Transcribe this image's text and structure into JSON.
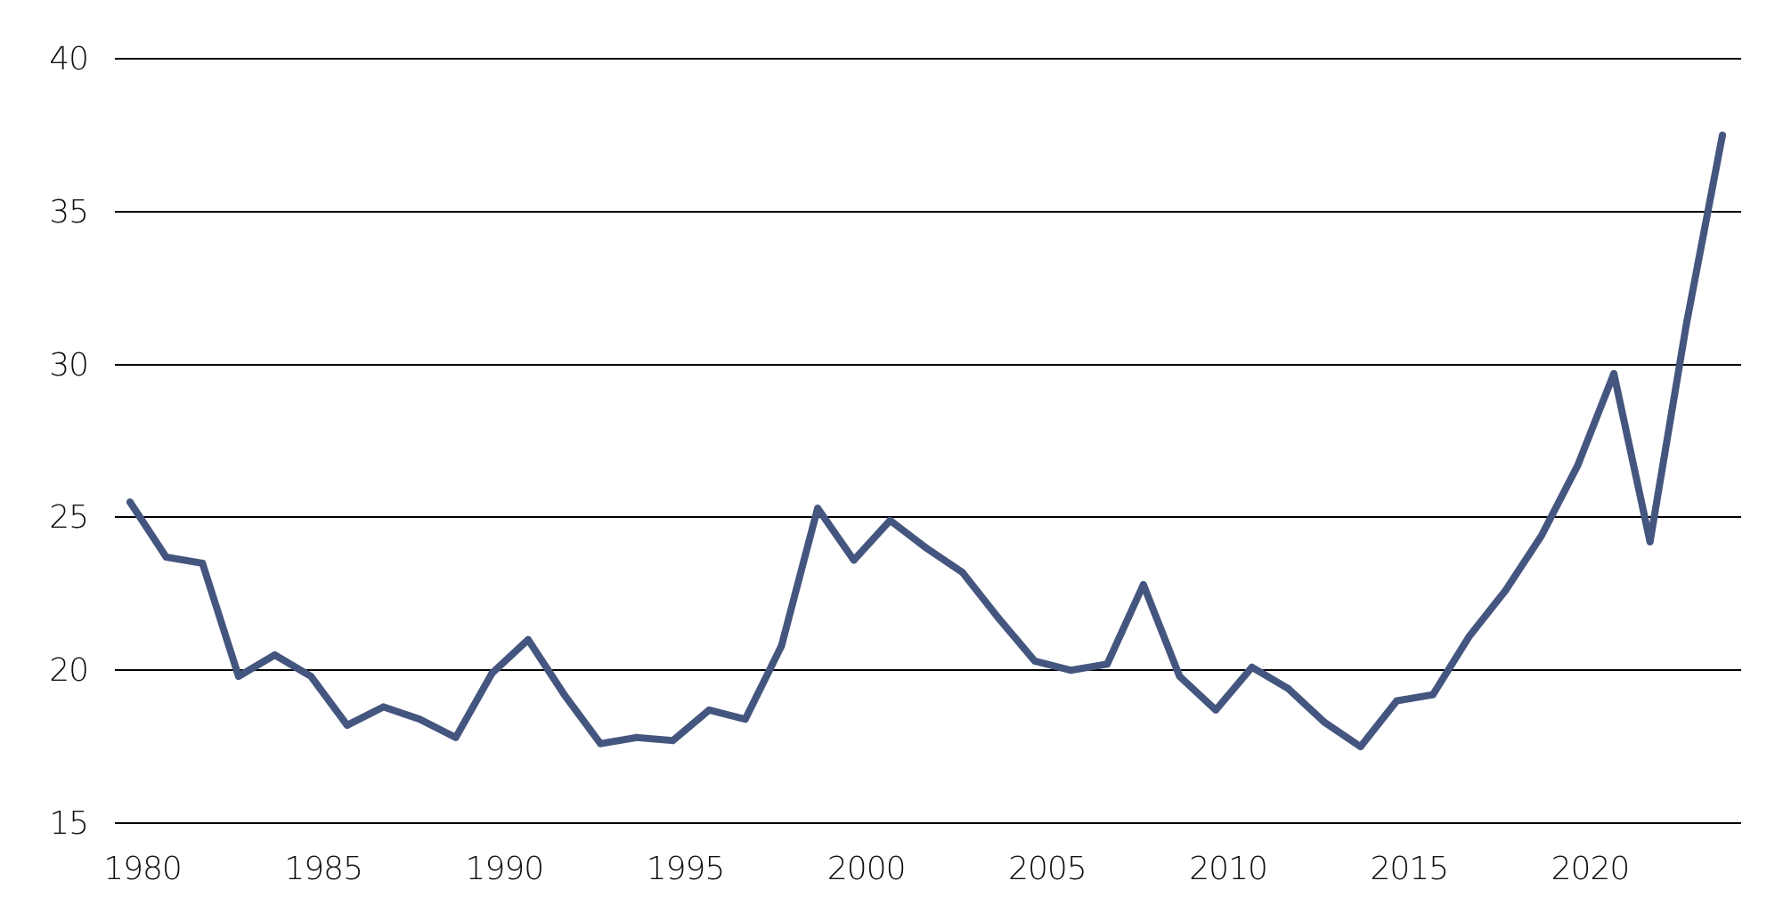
{
  "chart_data": {
    "type": "line",
    "title": "",
    "xlabel": "",
    "ylabel": "",
    "xlim": [
      1980,
      2024
    ],
    "ylim": [
      15,
      40
    ],
    "grid": true,
    "legend": "none",
    "y_ticks": [
      15,
      20,
      25,
      30,
      35,
      40
    ],
    "y_tick_labels": [
      "15",
      "20",
      "25",
      "30",
      "35",
      "40"
    ],
    "x_ticks": [
      1980,
      1985,
      1990,
      1995,
      2000,
      2005,
      2010,
      2015,
      2020
    ],
    "x_tick_labels": [
      "1980",
      "1985",
      "1990",
      "1995",
      "2000",
      "2005",
      "2010",
      "2015",
      "2020"
    ],
    "series_color": "#44567f",
    "grid_color": "#000000",
    "series": [
      {
        "x": [
          1980,
          1981,
          1982,
          1983,
          1984,
          1985,
          1986,
          1987,
          1988,
          1989,
          1990,
          1991,
          1992,
          1993,
          1994,
          1995,
          1996,
          1997,
          1998,
          1999,
          2000,
          2001,
          2002,
          2003,
          2004,
          2005,
          2006,
          2007,
          2008,
          2009,
          2010,
          2011,
          2012,
          2013,
          2014,
          2015,
          2016,
          2017,
          2018,
          2019,
          2020,
          2021,
          2022,
          2023,
          2024
        ],
        "values": [
          25.5,
          23.7,
          23.5,
          19.8,
          20.5,
          19.8,
          18.2,
          18.8,
          18.4,
          17.8,
          19.9,
          21.0,
          19.2,
          17.6,
          17.8,
          17.7,
          18.7,
          18.4,
          20.8,
          25.3,
          23.6,
          24.9,
          24.0,
          23.2,
          21.7,
          20.3,
          20.0,
          20.2,
          22.8,
          19.8,
          18.7,
          20.1,
          19.4,
          18.3,
          17.5,
          19.0,
          19.2,
          21.1,
          22.6,
          24.4,
          26.7,
          29.7,
          24.2,
          31.3,
          37.5
        ]
      }
    ]
  }
}
